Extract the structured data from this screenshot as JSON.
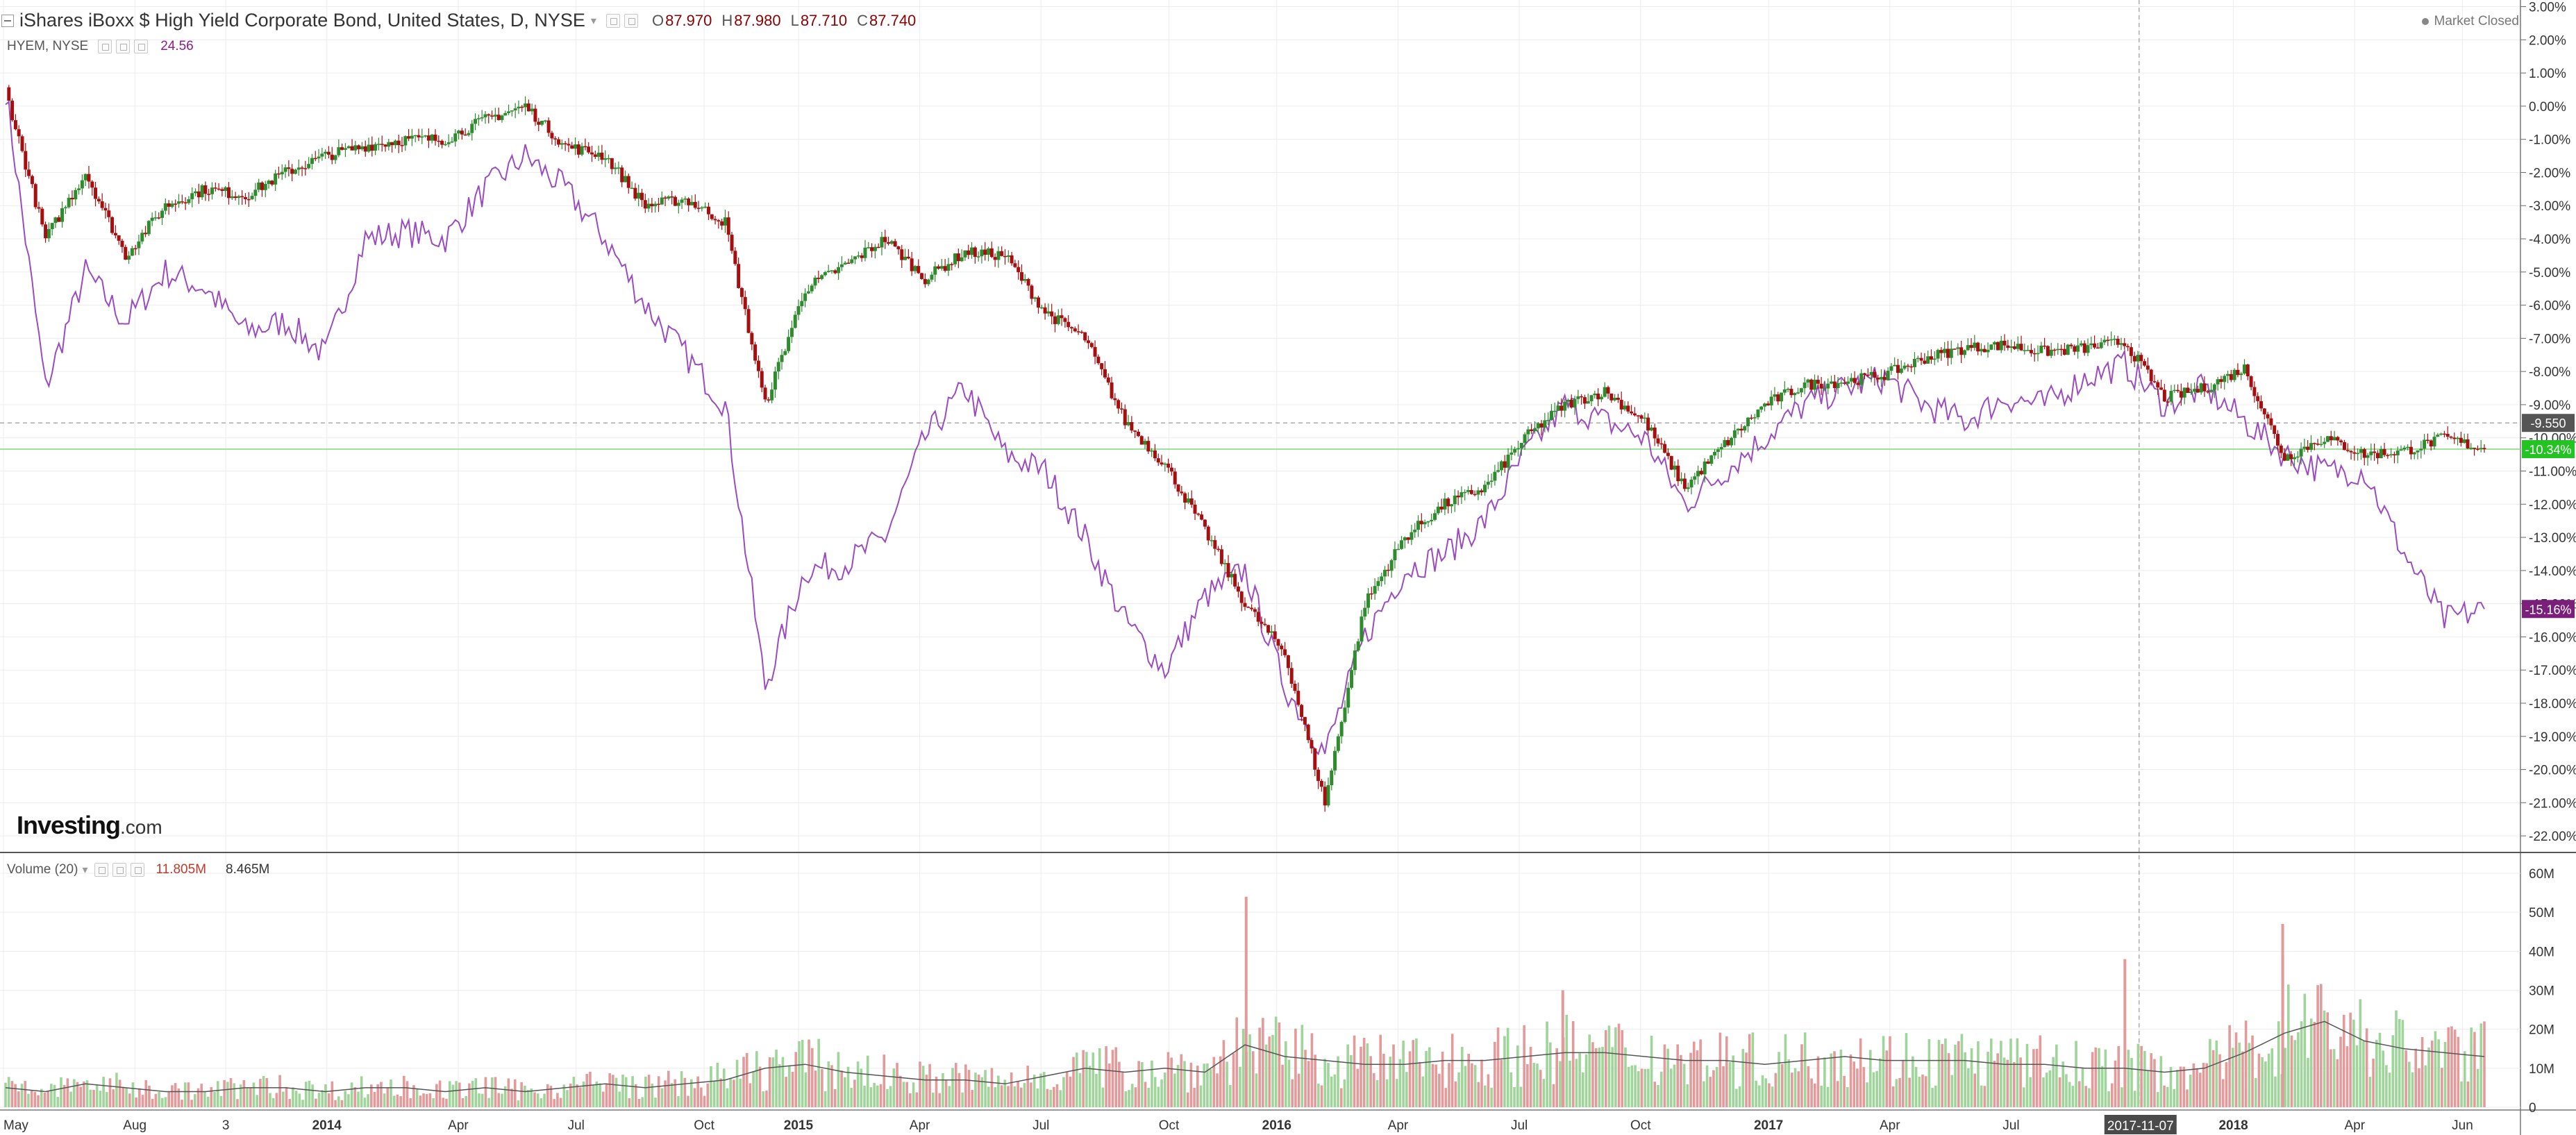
{
  "header": {
    "title": "iShares iBoxx $ High Yield Corporate Bond, United States, D, NYSE",
    "ohlc": [
      {
        "key": "O",
        "value": "87.970"
      },
      {
        "key": "H",
        "value": "87.980"
      },
      {
        "key": "L",
        "value": "87.710"
      },
      {
        "key": "C",
        "value": "87.740"
      }
    ],
    "market_status": "Market Closed"
  },
  "compare": {
    "label": "HYEM, NYSE",
    "value": "24.56"
  },
  "volume_legend": {
    "label": "Volume (20)",
    "value1": "11.805M",
    "value2": "8.465M"
  },
  "logo": {
    "brand": "Investing",
    "suffix": ".com"
  },
  "colors": {
    "up": "#2e8b2e",
    "down": "#a50f0f",
    "compare_line": "#9b4bc0",
    "vol_up": "#9fd49a",
    "vol_down": "#e39a9a",
    "grid": "#ececec",
    "badge_green": "#22c322",
    "badge_purple": "#7a1f7a",
    "badge_gray": "#555555"
  },
  "axis": {
    "pct_ticks": [
      "3.00%",
      "2.00%",
      "1.00%",
      "0.00%",
      "-1.00%",
      "-2.00%",
      "-3.00%",
      "-4.00%",
      "-5.00%",
      "-6.00%",
      "-7.00%",
      "-8.00%",
      "-9.00%",
      "-10.00%",
      "-11.00%",
      "-12.00%",
      "-13.00%",
      "-14.00%",
      "-15.00%",
      "-16.00%",
      "-17.00%",
      "-18.00%",
      "-19.00%",
      "-20.00%",
      "-21.00%",
      "-22.00%"
    ],
    "pct_values": [
      3,
      2,
      1,
      0,
      -1,
      -2,
      -3,
      -4,
      -5,
      -6,
      -7,
      -8,
      -9,
      -10,
      -11,
      -12,
      -13,
      -14,
      -15,
      -16,
      -17,
      -18,
      -19,
      -20,
      -21,
      -22
    ],
    "vol_ticks": [
      "60M",
      "50M",
      "40M",
      "30M",
      "20M",
      "10M",
      "0"
    ],
    "vol_values": [
      60,
      50,
      40,
      30,
      20,
      10,
      0
    ],
    "x_labels": [
      "May",
      "Aug",
      "3",
      "2014",
      "Apr",
      "Jul",
      "Oct",
      "2015",
      "Apr",
      "Jul",
      "Oct",
      "2016",
      "Apr",
      "Jul",
      "Oct",
      "2017",
      "Apr",
      "Jul",
      "Oct",
      "2018",
      "Apr",
      "Jun"
    ],
    "x_bold": [
      false,
      false,
      false,
      true,
      false,
      false,
      false,
      true,
      false,
      false,
      false,
      true,
      false,
      false,
      false,
      true,
      false,
      false,
      false,
      true,
      false,
      false
    ],
    "x_positions_pct": [
      0,
      19.5,
      33,
      48,
      67.5,
      85,
      104,
      118,
      136,
      154,
      173,
      189,
      207,
      225,
      243,
      262,
      280,
      298,
      317,
      331,
      349,
      365
    ],
    "crosshair_date": "2017-11-07"
  },
  "badges": {
    "gray": {
      "text": "-9.550",
      "value": -9.55
    },
    "green": {
      "text": "-10.34%",
      "value": -10.34
    },
    "purple": {
      "text": "-15.16%",
      "value": -15.16
    }
  },
  "chart_data": {
    "type": "line",
    "title": "iShares iBoxx $ High Yield Corporate Bond, United States, D, NYSE",
    "xlabel": "",
    "ylabel": "",
    "ylim": [
      -22.5,
      3.2
    ],
    "x": [
      "2013-05",
      "2013-06",
      "2013-07",
      "2013-08",
      "2013-09",
      "2013-10",
      "2013-11",
      "2013-12",
      "2014-01",
      "2014-02",
      "2014-03",
      "2014-04",
      "2014-05",
      "2014-06",
      "2014-07",
      "2014-08",
      "2014-09",
      "2014-10",
      "2014-11",
      "2014-12",
      "2015-01",
      "2015-02",
      "2015-03",
      "2015-04",
      "2015-05",
      "2015-06",
      "2015-07",
      "2015-08",
      "2015-09",
      "2015-10",
      "2015-11",
      "2015-12",
      "2016-01",
      "2016-02",
      "2016-03",
      "2016-04",
      "2016-05",
      "2016-06",
      "2016-07",
      "2016-08",
      "2016-09",
      "2016-10",
      "2016-11",
      "2016-12",
      "2017-01",
      "2017-02",
      "2017-03",
      "2017-04",
      "2017-05",
      "2017-06",
      "2017-07",
      "2017-08",
      "2017-09",
      "2017-10",
      "2017-11",
      "2017-12",
      "2018-01",
      "2018-02",
      "2018-03",
      "2018-04",
      "2018-05",
      "2018-06",
      "2018-07"
    ],
    "series": [
      {
        "name": "iShares iBoxx $ High Yield Corporate Bond",
        "values": [
          0.5,
          -4.0,
          -2.0,
          -4.5,
          -3.0,
          -2.5,
          -2.7,
          -2.0,
          -1.5,
          -1.2,
          -1.0,
          -1.0,
          -0.4,
          0.0,
          -1.2,
          -1.5,
          -3.0,
          -2.8,
          -3.5,
          -9.0,
          -5.5,
          -4.8,
          -4.0,
          -5.2,
          -4.4,
          -4.5,
          -6.2,
          -7.0,
          -9.5,
          -10.8,
          -12.8,
          -15.0,
          -16.5,
          -21.0,
          -15.0,
          -13.0,
          -12.0,
          -11.5,
          -10.0,
          -9.0,
          -8.6,
          -9.5,
          -11.5,
          -10.2,
          -9.0,
          -8.4,
          -8.3,
          -8.1,
          -7.6,
          -7.3,
          -7.2,
          -7.4,
          -7.3,
          -7.1,
          -8.8,
          -8.5,
          -7.9,
          -10.6,
          -10.0,
          -10.5,
          -10.4,
          -10.0,
          -10.34
        ]
      },
      {
        "name": "HYEM, NYSE",
        "values": [
          0.5,
          -8.5,
          -5.0,
          -6.5,
          -5.0,
          -5.5,
          -6.8,
          -6.5,
          -7.5,
          -4.0,
          -3.8,
          -4.0,
          -2.5,
          -1.5,
          -2.5,
          -4.0,
          -6.0,
          -7.5,
          -9.0,
          -17.5,
          -14.0,
          -13.8,
          -13.0,
          -10.0,
          -8.5,
          -10.5,
          -11.0,
          -13.0,
          -15.5,
          -17.0,
          -14.8,
          -14.0,
          -17.5,
          -19.5,
          -16.0,
          -14.0,
          -13.5,
          -12.5,
          -10.5,
          -9.0,
          -9.5,
          -10.0,
          -12.0,
          -11.0,
          -10.0,
          -9.0,
          -8.5,
          -8.2,
          -9.0,
          -9.5,
          -8.8,
          -9.0,
          -8.2,
          -7.8,
          -9.0,
          -8.5,
          -9.5,
          -10.5,
          -11.0,
          -11.0,
          -13.5,
          -15.5,
          -15.16
        ]
      }
    ],
    "volume": {
      "name": "Volume (20)",
      "ylim": [
        0,
        60
      ],
      "spikes": [
        {
          "x": "2015-12",
          "value": 54
        },
        {
          "x": "2017-10",
          "value": 38
        },
        {
          "x": "2018-02",
          "value": 47
        },
        {
          "x": "2018-02",
          "value": 39
        },
        {
          "x": "2016-08",
          "value": 30
        }
      ],
      "average": [
        5,
        4,
        6,
        5,
        4,
        4,
        5,
        5,
        4,
        5,
        5,
        4,
        5,
        4,
        5,
        6,
        5,
        6,
        7,
        10,
        11,
        9,
        8,
        7,
        7,
        6,
        8,
        10,
        9,
        10,
        9,
        16,
        13,
        12,
        11,
        11,
        12,
        12,
        13,
        14,
        14,
        13,
        12,
        12,
        11,
        12,
        13,
        12,
        12,
        12,
        11,
        11,
        10,
        10,
        9,
        10,
        14,
        19,
        22,
        17,
        15,
        14,
        13
      ]
    }
  }
}
